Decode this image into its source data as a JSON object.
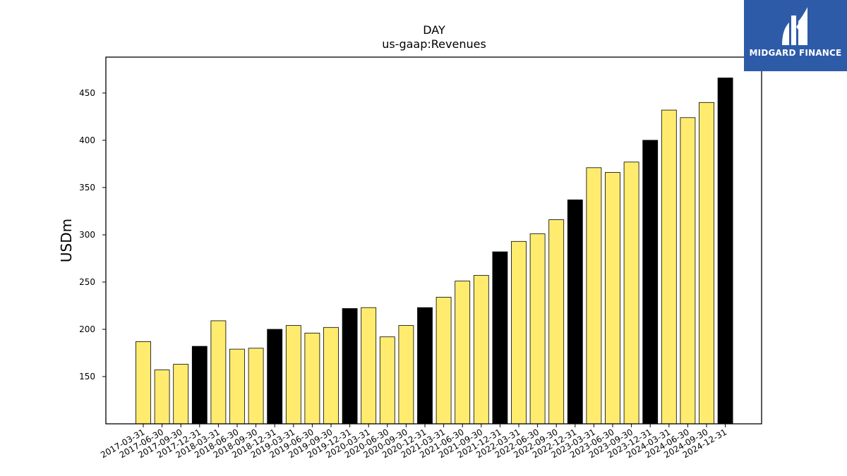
{
  "brand": {
    "name": "MIDGARD FINANCE",
    "logo_icon": "midgard-logo-icon",
    "background": "#2e5ba8"
  },
  "chart_data": {
    "type": "bar",
    "title": "DAY",
    "subtitle": "us-gaap:Revenues",
    "xlabel": "",
    "ylabel": "USDm",
    "ylim": [
      100,
      488
    ],
    "yticks": [
      150,
      200,
      250,
      300,
      350,
      400,
      450
    ],
    "grid": false,
    "legend": "none",
    "colors": {
      "quarter": "#ffec6e",
      "year_end": "#000000",
      "edge": "#000000"
    },
    "categories": [
      "2017-03-31",
      "2017-06-30",
      "2017-09-30",
      "2017-12-31",
      "2018-03-31",
      "2018-06-30",
      "2018-09-30",
      "2018-12-31",
      "2019-03-31",
      "2019-06-30",
      "2019-09-30",
      "2019-12-31",
      "2020-03-31",
      "2020-06-30",
      "2020-09-30",
      "2020-12-31",
      "2021-03-31",
      "2021-06-30",
      "2021-09-30",
      "2021-12-31",
      "2022-03-31",
      "2022-06-30",
      "2022-09-30",
      "2022-12-31",
      "2023-03-31",
      "2023-06-30",
      "2023-09-30",
      "2023-12-31",
      "2024-03-31",
      "2024-06-30",
      "2024-09-30",
      "2024-12-31"
    ],
    "values": [
      187,
      157,
      163,
      182,
      209,
      179,
      180,
      200,
      204,
      196,
      202,
      222,
      223,
      192,
      204,
      223,
      234,
      251,
      257,
      282,
      293,
      301,
      316,
      337,
      371,
      366,
      377,
      400,
      432,
      424,
      440,
      466
    ]
  }
}
